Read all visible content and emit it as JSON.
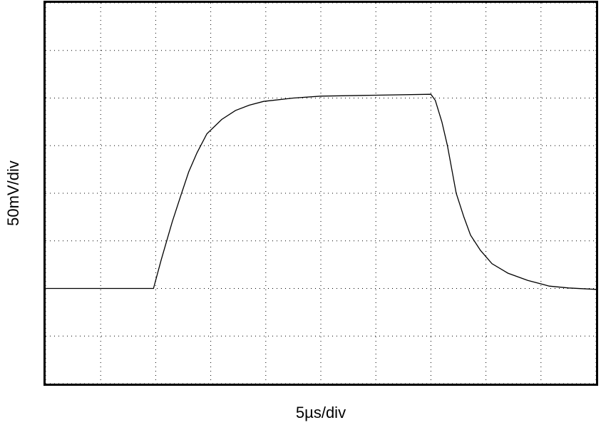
{
  "chart_data": {
    "type": "line",
    "x_label": "5µs/div",
    "y_label": "50mV/div",
    "x": [
      0,
      1.0,
      1.96,
      2.1,
      2.3,
      2.47,
      2.6,
      2.75,
      2.93,
      3.2,
      3.45,
      3.7,
      3.96,
      4.5,
      5.0,
      6.0,
      7.0,
      7.08,
      7.2,
      7.3,
      7.46,
      7.6,
      7.72,
      7.9,
      8.11,
      8.4,
      8.76,
      9.15,
      9.5,
      10
    ],
    "series": [
      {
        "color": "#000000",
        "values": [
          2.0,
          2.0,
          2.0,
          2.6,
          3.4,
          4.0,
          4.45,
          4.85,
          5.25,
          5.55,
          5.74,
          5.85,
          5.93,
          6.0,
          6.04,
          6.06,
          6.08,
          5.95,
          5.5,
          5.0,
          4.0,
          3.5,
          3.12,
          2.8,
          2.52,
          2.32,
          2.17,
          2.05,
          2.01,
          1.98
        ]
      }
    ],
    "xlim": [
      0,
      10
    ],
    "ylim": [
      0,
      8
    ],
    "xticks": [
      0,
      1,
      2,
      3,
      4,
      5,
      6,
      7,
      8,
      9,
      10
    ],
    "yticks": [
      0,
      1,
      2,
      3,
      4,
      5,
      6,
      7,
      8
    ],
    "grid": true
  }
}
